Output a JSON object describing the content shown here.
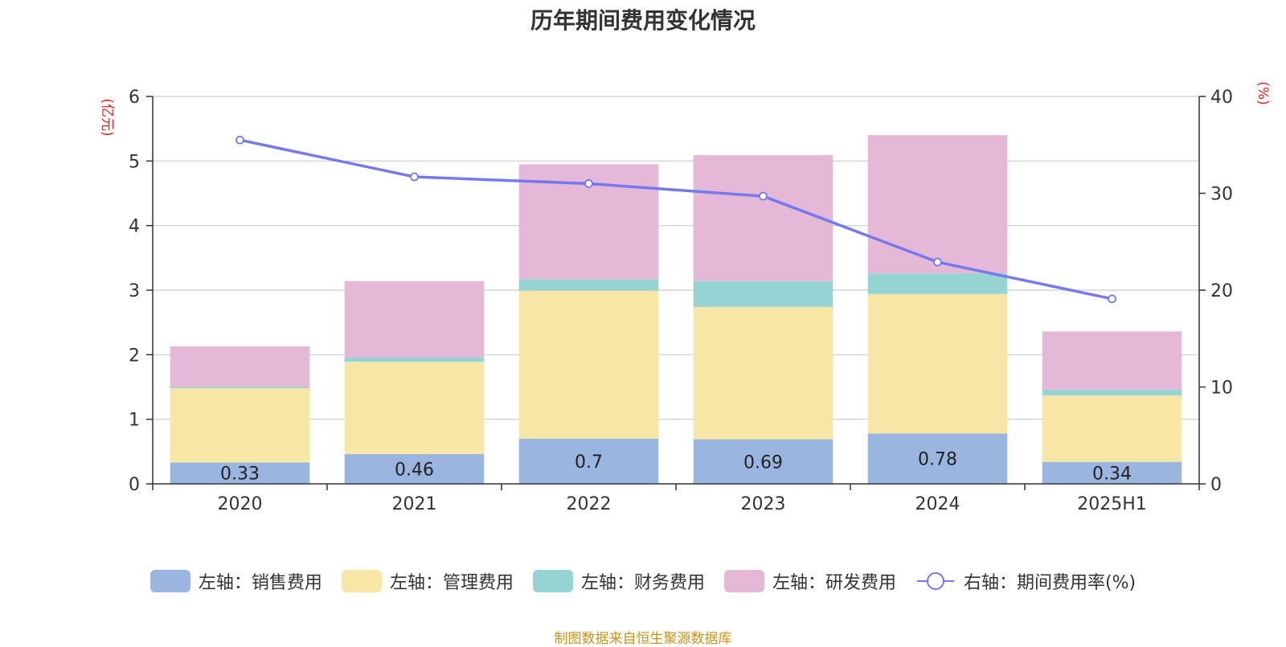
{
  "chart_data": {
    "type": "bar",
    "title": "历年期间费用变化情况",
    "categories": [
      "2020",
      "2021",
      "2022",
      "2023",
      "2024",
      "2025H1"
    ],
    "left_axis": {
      "label": "(亿元)",
      "ylim": [
        0,
        6
      ],
      "ticks": [
        0,
        1,
        2,
        3,
        4,
        5,
        6
      ]
    },
    "right_axis": {
      "label": "(%)",
      "ylim": [
        0,
        40
      ],
      "ticks": [
        0,
        10,
        20,
        30,
        40
      ]
    },
    "series": [
      {
        "name": "左轴：销售费用",
        "type": "bar",
        "axis": "left",
        "color": "#9ab6e0",
        "values": [
          0.33,
          0.46,
          0.7,
          0.69,
          0.78,
          0.34
        ],
        "show_labels": true
      },
      {
        "name": "左轴：管理费用",
        "type": "bar",
        "axis": "left",
        "color": "#f7e6a6",
        "values": [
          1.15,
          1.43,
          2.29,
          2.05,
          2.16,
          1.03
        ],
        "show_labels": false
      },
      {
        "name": "左轴：财务费用",
        "type": "bar",
        "axis": "left",
        "color": "#96d4d4",
        "values": [
          0.02,
          0.07,
          0.18,
          0.4,
          0.32,
          0.09
        ],
        "show_labels": false
      },
      {
        "name": "左轴：研发费用",
        "type": "bar",
        "axis": "left",
        "color": "#e6b8d8",
        "values": [
          0.63,
          1.18,
          1.78,
          1.95,
          2.14,
          0.9
        ],
        "show_labels": false
      },
      {
        "name": "右轴：期间费用率(%)",
        "type": "line",
        "axis": "right",
        "color": "#7479f0",
        "values": [
          35.5,
          31.7,
          31.0,
          29.7,
          22.9,
          19.1
        ]
      }
    ],
    "stacked": true,
    "grid": true,
    "legend_position": "bottom"
  },
  "source_note": "制图数据来自恒生聚源数据库"
}
